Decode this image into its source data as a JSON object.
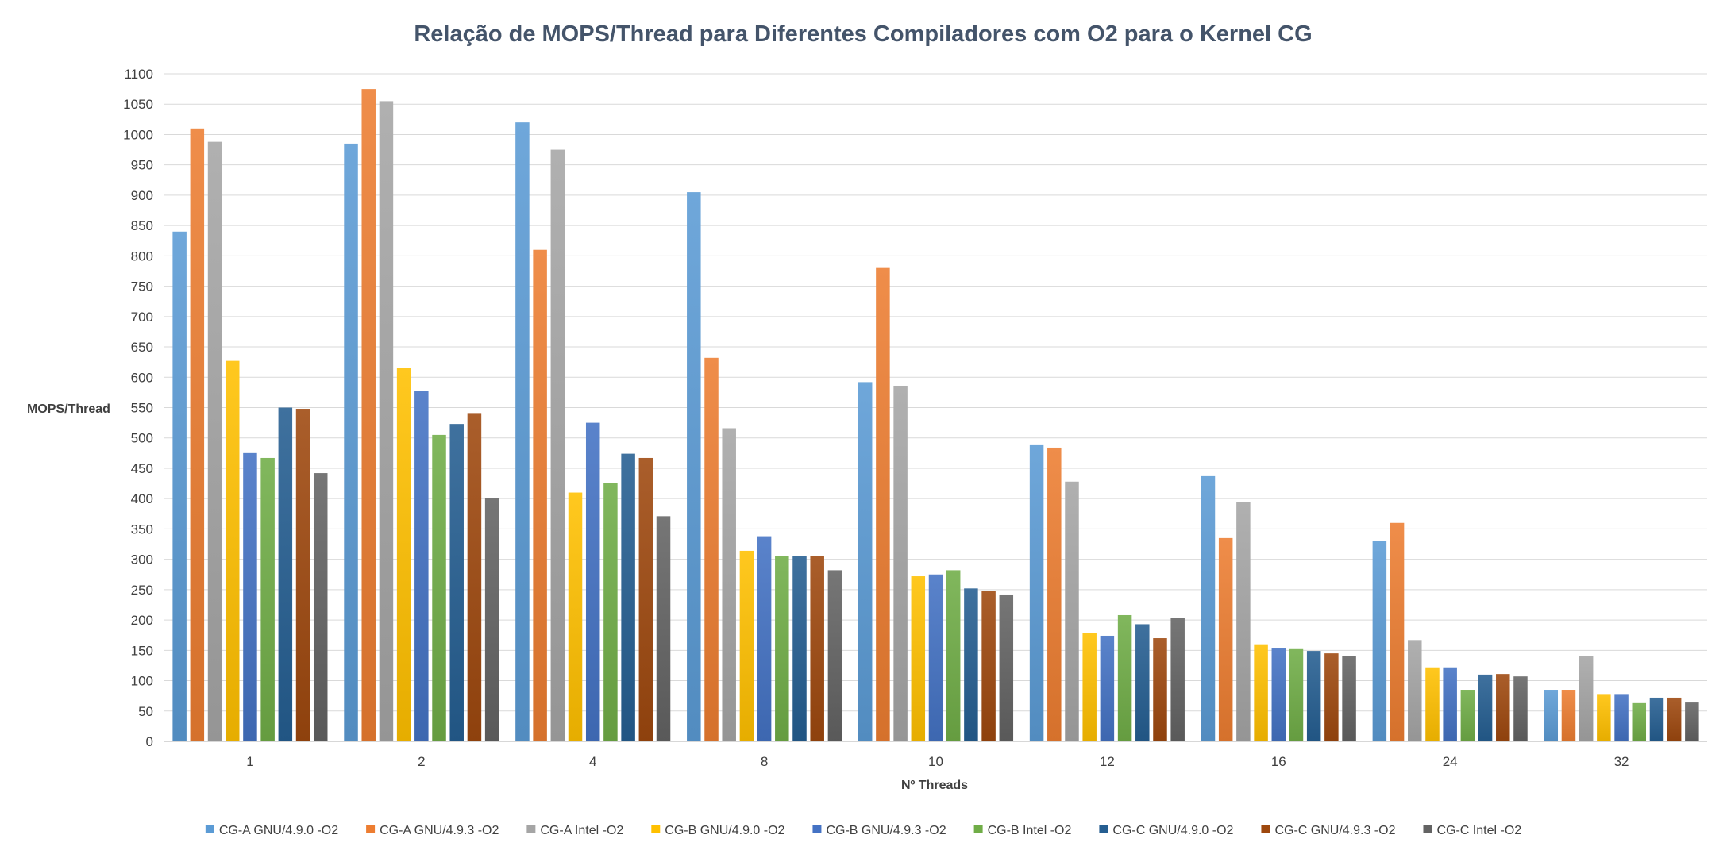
{
  "chart_data": {
    "type": "bar",
    "title": "Relação de MOPS/Thread para Diferentes Compiladores com O2 para o Kernel CG",
    "xlabel": "Nº Threads",
    "ylabel": "MOPS/Thread",
    "ylim": [
      0,
      1100
    ],
    "ytick_step": 50,
    "grid": true,
    "legend_position": "bottom",
    "categories": [
      "1",
      "2",
      "4",
      "8",
      "10",
      "12",
      "16",
      "24",
      "32"
    ],
    "series": [
      {
        "name": "CG-A GNU/4.9.0 -O2",
        "color": "#5b9bd5",
        "values": [
          840,
          985,
          1020,
          905,
          592,
          488,
          437,
          330,
          85
        ]
      },
      {
        "name": "CG-A GNU/4.9.3 -O2",
        "color": "#ed7d31",
        "values": [
          1010,
          1075,
          810,
          632,
          780,
          484,
          335,
          360,
          85
        ]
      },
      {
        "name": "CG-A Intel -O2",
        "color": "#a5a5a5",
        "values": [
          988,
          1055,
          975,
          516,
          586,
          428,
          395,
          167,
          140
        ]
      },
      {
        "name": "CG-B GNU/4.9.0 -O2",
        "color": "#ffc000",
        "values": [
          627,
          615,
          410,
          314,
          272,
          178,
          160,
          122,
          78
        ]
      },
      {
        "name": "CG-B GNU/4.9.3 -O2",
        "color": "#4472c4",
        "values": [
          475,
          578,
          525,
          338,
          275,
          174,
          153,
          122,
          78
        ]
      },
      {
        "name": "CG-B Intel -O2",
        "color": "#70ad47",
        "values": [
          467,
          505,
          426,
          306,
          282,
          208,
          152,
          85,
          63
        ]
      },
      {
        "name": "CG-C GNU/4.9.0 -O2",
        "color": "#255e91",
        "values": [
          550,
          523,
          474,
          305,
          252,
          193,
          149,
          110,
          72
        ]
      },
      {
        "name": "CG-C GNU/4.9.3 -O2",
        "color": "#9e480e",
        "values": [
          548,
          541,
          467,
          306,
          248,
          170,
          145,
          111,
          72
        ]
      },
      {
        "name": "CG-C Intel -O2",
        "color": "#636363",
        "values": [
          442,
          401,
          371,
          282,
          242,
          204,
          141,
          107,
          64
        ]
      }
    ]
  }
}
